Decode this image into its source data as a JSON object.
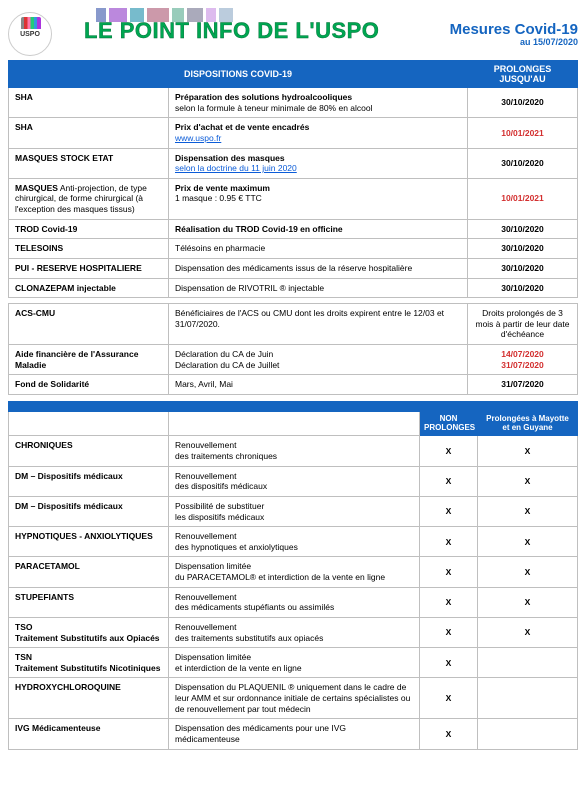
{
  "header": {
    "logo_text": "USPO",
    "title": "LE POINT INFO DE L'USPO",
    "subtitle": "Mesures Covid-19",
    "date_line": "au 15/07/2020"
  },
  "table1": {
    "col_dispositions": "DISPOSITIONS COVID-19",
    "col_prolonges": "PROLONGES JUSQU'AU",
    "rows": [
      {
        "name": "SHA",
        "desc_bold": "Préparation des solutions hydroalcooliques",
        "desc_rest": "selon la formule à teneur minimale de 80% en alcool",
        "date": "30/10/2020"
      },
      {
        "name": "SHA",
        "desc_bold": "Prix d'achat et de vente encadrés",
        "link": "www.uspo.fr",
        "date": "10/01/2021",
        "date_red": true
      },
      {
        "name": "MASQUES STOCK ETAT",
        "desc_bold": "Dispensation des masques",
        "link": "selon la doctrine du 11 juin 2020",
        "date": "30/10/2020"
      },
      {
        "name_bold": "MASQUES",
        "name_rest": " Anti-projection, de type chirurgical, de forme chirurgical (à l'exception des masques tissus)",
        "desc_bold": "Prix de vente maximum",
        "desc_rest": "1 masque : 0.95 € TTC",
        "date": "10/01/2021",
        "date_red": true
      },
      {
        "name": "TROD Covid-19",
        "desc_bold": "Réalisation du TROD Covid-19 en officine",
        "date": "30/10/2020"
      },
      {
        "name": "TELESOINS",
        "desc_plain": "Télésoins en pharmacie",
        "date": "30/10/2020"
      },
      {
        "name": "PUI - RESERVE HOSPITALIERE",
        "desc_plain": "Dispensation des médicaments issus de la réserve hospitalière",
        "date": "30/10/2020"
      },
      {
        "name": "CLONAZEPAM injectable",
        "desc_plain": "Dispensation de RIVOTRIL ® injectable",
        "date": "30/10/2020"
      }
    ],
    "rows_b": [
      {
        "name": "ACS-CMU",
        "desc_plain": "Bénéficiaires de l'ACS ou CMU dont les droits expirent entre le 12/03 et 31/07/2020.",
        "date_text": "Droits prolongés de 3 mois à partir de leur date d'échéance",
        "date_plain": true
      },
      {
        "name": "Aide financière de l'Assurance Maladie",
        "desc_plain": "Déclaration du CA de Juin\nDéclaration du CA de Juillet",
        "date": "14/07/2020\n31/07/2020",
        "date_red": true
      },
      {
        "name": "Fond de Solidarité",
        "desc_plain": "Mars, Avril, Mai",
        "date": "31/07/2020"
      }
    ]
  },
  "table2": {
    "col_non": "NON PROLONGES",
    "col_may": "Prolongées à Mayotte et en Guyane",
    "rows": [
      {
        "name": "CHRONIQUES",
        "desc": "Renouvellement\ndes traitements chroniques",
        "x1": "X",
        "x2": "X"
      },
      {
        "name": "DM – Dispositifs médicaux",
        "desc": "Renouvellement\ndes dispositifs médicaux",
        "x1": "X",
        "x2": "X"
      },
      {
        "name": "DM – Dispositifs médicaux",
        "desc": "Possibilité de substituer\nles dispositifs médicaux",
        "x1": "X",
        "x2": "X"
      },
      {
        "name": "HYPNOTIQUES - ANXIOLYTIQUES",
        "desc": "Renouvellement\ndes hypnotiques et anxiolytiques",
        "x1": "X",
        "x2": "X"
      },
      {
        "name": "PARACETAMOL",
        "desc": "Dispensation limitée\ndu PARACETAMOL® et interdiction de la vente en ligne",
        "x1": "X",
        "x2": "X"
      },
      {
        "name": "STUPEFIANTS",
        "desc": "Renouvellement\ndes médicaments stupéfiants ou assimilés",
        "x1": "X",
        "x2": "X"
      },
      {
        "name_line1": "TSO",
        "name_line2": "Traitement Substitutifs aux Opiacés",
        "desc": "Renouvellement\ndes traitements substitutifs aux opiacés",
        "x1": "X",
        "x2": "X"
      },
      {
        "name_line1": "TSN",
        "name_line2": "Traitement Substitutifs Nicotiniques",
        "desc": "Dispensation limitée\net interdiction de la vente en ligne",
        "x1": "X",
        "x2": ""
      },
      {
        "name": "HYDROXYCHLOROQUINE",
        "desc": "Dispensation du PLAQUENIL ® uniquement dans le cadre de leur AMM et sur ordonnance initiale de certains spécialistes ou de renouvellement par tout médecin",
        "x1": "X",
        "x2": ""
      },
      {
        "name": "IVG Médicamenteuse",
        "desc": "Dispensation des médicaments pour une IVG médicamenteuse",
        "x1": "X",
        "x2": ""
      }
    ]
  }
}
